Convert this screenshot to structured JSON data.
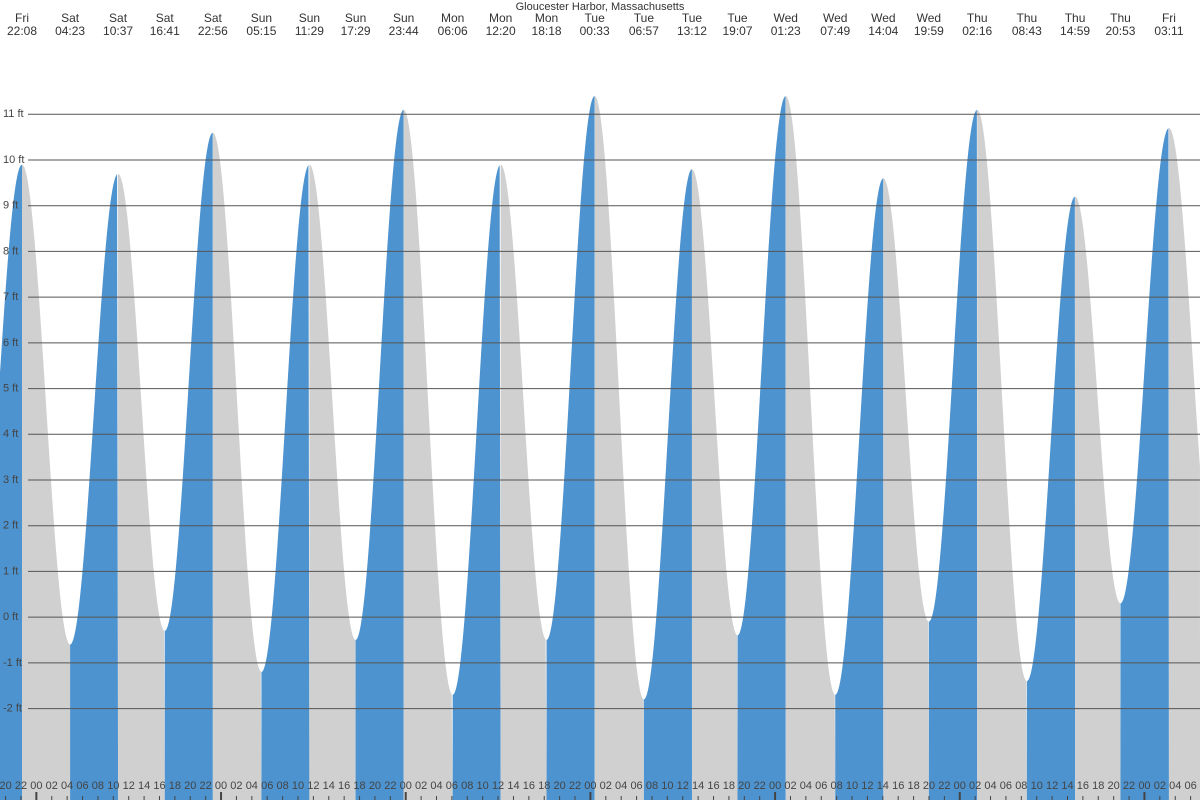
{
  "chart_data": {
    "type": "tide",
    "title": "Gloucester Harbor, Massachusetts",
    "days": [
      "Fri",
      "Sat",
      "Sat",
      "Sat",
      "Sat",
      "Sun",
      "Sun",
      "Sun",
      "Sun",
      "Mon",
      "Mon",
      "Mon",
      "Tue",
      "Tue",
      "Tue",
      "Tue",
      "Wed",
      "Wed",
      "Wed",
      "Wed",
      "Thu",
      "Thu",
      "Thu",
      "Thu",
      "Fri"
    ],
    "times": [
      "22:08",
      "04:23",
      "10:37",
      "16:41",
      "22:56",
      "05:15",
      "11:29",
      "17:29",
      "23:44",
      "06:06",
      "12:20",
      "18:18",
      "00:33",
      "06:57",
      "13:12",
      "19:07",
      "01:23",
      "07:49",
      "14:04",
      "19:59",
      "02:16",
      "08:43",
      "14:59",
      "20:53",
      "03:11"
    ],
    "values": [
      9.9,
      -0.6,
      9.7,
      -0.3,
      10.6,
      -1.2,
      9.9,
      -0.5,
      11.1,
      -1.7,
      9.9,
      -0.5,
      11.4,
      -1.8,
      9.8,
      -0.4,
      11.4,
      -1.7,
      9.6,
      -0.1,
      11.1,
      -1.4,
      9.2,
      0.3,
      10.7
    ],
    "rising_color": "#4d93cf",
    "falling_color": "#d0d0d0",
    "ylim": [
      -4,
      13.5
    ],
    "yticks": [
      {
        "value": -2,
        "label": "-2 ft"
      },
      {
        "value": -1,
        "label": "-1 ft"
      },
      {
        "value": 0,
        "label": "0 ft"
      },
      {
        "value": 1,
        "label": "1 ft"
      },
      {
        "value": 2,
        "label": "2 ft"
      },
      {
        "value": 3,
        "label": "3 ft"
      },
      {
        "value": 4,
        "label": "4 ft"
      },
      {
        "value": 5,
        "label": "5 ft"
      },
      {
        "value": 6,
        "label": "6 ft"
      },
      {
        "value": 7,
        "label": "7 ft"
      },
      {
        "value": 8,
        "label": "8 ft"
      },
      {
        "value": 9,
        "label": "9 ft"
      },
      {
        "value": 10,
        "label": "10 ft"
      },
      {
        "value": 11,
        "label": "11 ft"
      }
    ],
    "grid": true,
    "hour_labels": [
      "20",
      "22",
      "00",
      "02",
      "04",
      "06",
      "08",
      "10",
      "12",
      "14",
      "16",
      "18",
      "20",
      "22",
      "00",
      "02",
      "04",
      "06",
      "08",
      "10",
      "12",
      "14",
      "16",
      "18",
      "20",
      "22",
      "00",
      "02",
      "04",
      "06",
      "08",
      "10",
      "12",
      "14",
      "16",
      "18",
      "20",
      "22",
      "00",
      "02",
      "04",
      "06",
      "08",
      "10",
      "12",
      "14",
      "16",
      "18",
      "20",
      "22",
      "00",
      "02",
      "04",
      "06",
      "08",
      "10",
      "12",
      "14",
      "16",
      "18",
      "20",
      "22",
      "00",
      "02",
      "04",
      "06",
      "08",
      "10",
      "12",
      "14",
      "16",
      "18",
      "20",
      "22",
      "00",
      "02",
      "04",
      "06"
    ]
  }
}
